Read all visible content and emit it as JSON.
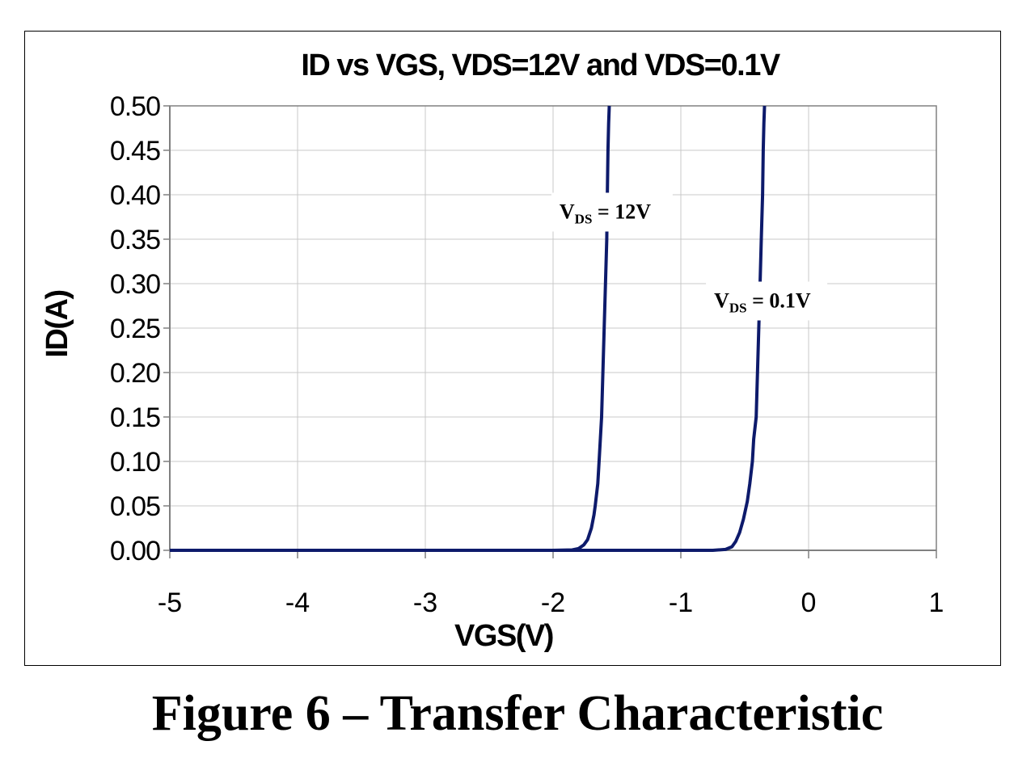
{
  "caption": "Figure 6 – Transfer Characteristic",
  "colors": {
    "series": "#0d1a6b",
    "grid": "#c8c8c8",
    "axis": "#808080",
    "text": "#000000"
  },
  "chart_data": {
    "type": "line",
    "title": "ID vs VGS, VDS=12V and VDS=0.1V",
    "xlabel": "VGS(V)",
    "ylabel": "ID(A)",
    "xlim": [
      -5,
      1
    ],
    "ylim": [
      0,
      0.5
    ],
    "x_ticks": [
      "-5",
      "-4",
      "-3",
      "-2",
      "-1",
      "0",
      "1"
    ],
    "y_ticks": [
      "0.00",
      "0.05",
      "0.10",
      "0.15",
      "0.20",
      "0.25",
      "0.30",
      "0.35",
      "0.40",
      "0.45",
      "0.50"
    ],
    "grid": true,
    "series": [
      {
        "name": "VDS = 12V",
        "label_main": "V",
        "label_sub": "DS",
        "label_rest": " = 12V",
        "x": [
          -5,
          -2.0,
          -1.85,
          -1.8,
          -1.76,
          -1.73,
          -1.7,
          -1.68,
          -1.67,
          -1.65,
          -1.64,
          -1.62,
          -1.61,
          -1.6,
          -1.59,
          -1.58,
          -1.575,
          -1.57,
          -1.565,
          -1.56
        ],
        "y": [
          0,
          0,
          0.0005,
          0.002,
          0.006,
          0.012,
          0.025,
          0.04,
          0.05,
          0.075,
          0.1,
          0.15,
          0.2,
          0.25,
          0.3,
          0.35,
          0.4,
          0.45,
          0.48,
          0.5
        ]
      },
      {
        "name": "VDS = 0.1V",
        "label_main": "V",
        "label_sub": "DS",
        "label_rest": " = 0.1V",
        "x": [
          -5,
          -0.75,
          -0.65,
          -0.6,
          -0.57,
          -0.54,
          -0.51,
          -0.48,
          -0.46,
          -0.44,
          -0.43,
          -0.41,
          -0.4,
          -0.39,
          -0.38,
          -0.37,
          -0.36,
          -0.355,
          -0.35,
          -0.345
        ],
        "y": [
          0,
          0,
          0.001,
          0.004,
          0.01,
          0.02,
          0.035,
          0.055,
          0.075,
          0.1,
          0.125,
          0.15,
          0.2,
          0.25,
          0.3,
          0.35,
          0.4,
          0.45,
          0.48,
          0.5
        ]
      }
    ]
  }
}
